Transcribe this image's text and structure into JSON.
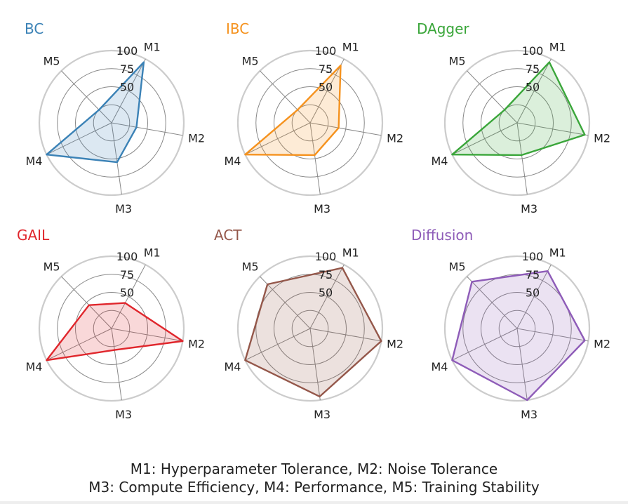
{
  "chart_data": [
    {
      "type": "radar",
      "title": "BC",
      "color": "#3b82b6",
      "axes": [
        "M1",
        "M2",
        "M3",
        "M4",
        "M5"
      ],
      "rticks": [
        50,
        75,
        100
      ],
      "rlim": [
        0,
        100
      ],
      "values": [
        95,
        35,
        55,
        100,
        25
      ]
    },
    {
      "type": "radar",
      "title": "IBC",
      "color": "#f5921e",
      "axes": [
        "M1",
        "M2",
        "M3",
        "M4",
        "M5"
      ],
      "rticks": [
        50,
        75,
        100
      ],
      "rlim": [
        0,
        100
      ],
      "values": [
        90,
        40,
        45,
        100,
        25
      ]
    },
    {
      "type": "radar",
      "title": "DAgger",
      "color": "#3aa63a",
      "axes": [
        "M1",
        "M2",
        "M3",
        "M4",
        "M5"
      ],
      "rticks": [
        50,
        75,
        100
      ],
      "rlim": [
        0,
        100
      ],
      "values": [
        95,
        95,
        45,
        100,
        25
      ]
    },
    {
      "type": "radar",
      "title": "GAIL",
      "color": "#e0262c",
      "axes": [
        "M1",
        "M2",
        "M3",
        "M4",
        "M5"
      ],
      "rticks": [
        50,
        75,
        100
      ],
      "rlim": [
        0,
        100
      ],
      "values": [
        40,
        100,
        30,
        100,
        45
      ]
    },
    {
      "type": "radar",
      "title": "ACT",
      "color": "#94574a",
      "axes": [
        "M1",
        "M2",
        "M3",
        "M4",
        "M5"
      ],
      "rticks": [
        50,
        75,
        100
      ],
      "rlim": [
        0,
        100
      ],
      "values": [
        95,
        100,
        95,
        100,
        85
      ]
    },
    {
      "type": "radar",
      "title": "Diffusion",
      "color": "#8e5cb8",
      "axes": [
        "M1",
        "M2",
        "M3",
        "M4",
        "M5"
      ],
      "rticks": [
        50,
        75,
        100
      ],
      "rlim": [
        0,
        100
      ],
      "values": [
        90,
        95,
        100,
        100,
        90
      ]
    }
  ],
  "caption": {
    "line1": "M1: Hyperparameter Tolerance, M2: Noise Tolerance",
    "line2": "M3: Compute Efficiency, M4: Performance, M5: Training Stability"
  }
}
